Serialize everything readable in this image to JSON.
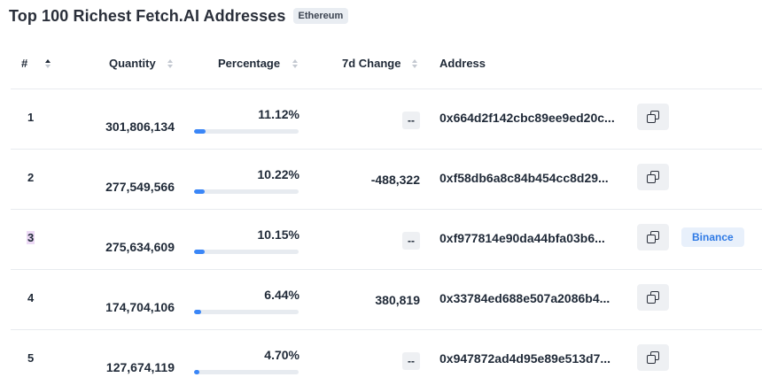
{
  "title": "Top 100 Richest Fetch.AI Addresses",
  "chain_badge": "Ethereum",
  "columns": {
    "rank": "#",
    "quantity": "Quantity",
    "percentage": "Percentage",
    "change": "7d Change",
    "address": "Address"
  },
  "rows": [
    {
      "rank": "1",
      "quantity": "301,806,134",
      "percentage": "11.12%",
      "percent_value": 11.12,
      "change": "--",
      "address": "0x664d2f142cbc89ee9ed20c...",
      "label": ""
    },
    {
      "rank": "2",
      "quantity": "277,549,566",
      "percentage": "10.22%",
      "percent_value": 10.22,
      "change": "-488,322",
      "address": "0xf58db6a8c84b454cc8d29...",
      "label": ""
    },
    {
      "rank": "3",
      "quantity": "275,634,609",
      "percentage": "10.15%",
      "percent_value": 10.15,
      "change": "--",
      "address": "0xf977814e90da44bfa03b6...",
      "label": "Binance"
    },
    {
      "rank": "4",
      "quantity": "174,704,106",
      "percentage": "6.44%",
      "percent_value": 6.44,
      "change": "380,819",
      "address": "0x33784ed688e507a2086b4...",
      "label": ""
    },
    {
      "rank": "5",
      "quantity": "127,674,119",
      "percentage": "4.70%",
      "percent_value": 4.7,
      "change": "--",
      "address": "0x947872ad4d95e89e513d7...",
      "label": ""
    }
  ],
  "colors": {
    "bar_fill": "#3a86f7",
    "bar_track": "#e7ebf0",
    "label_badge_text": "#2f7ae5",
    "highlight": "#ecd9f5"
  },
  "icons": {
    "copy": "copy-icon",
    "sort": "sort-icon"
  }
}
